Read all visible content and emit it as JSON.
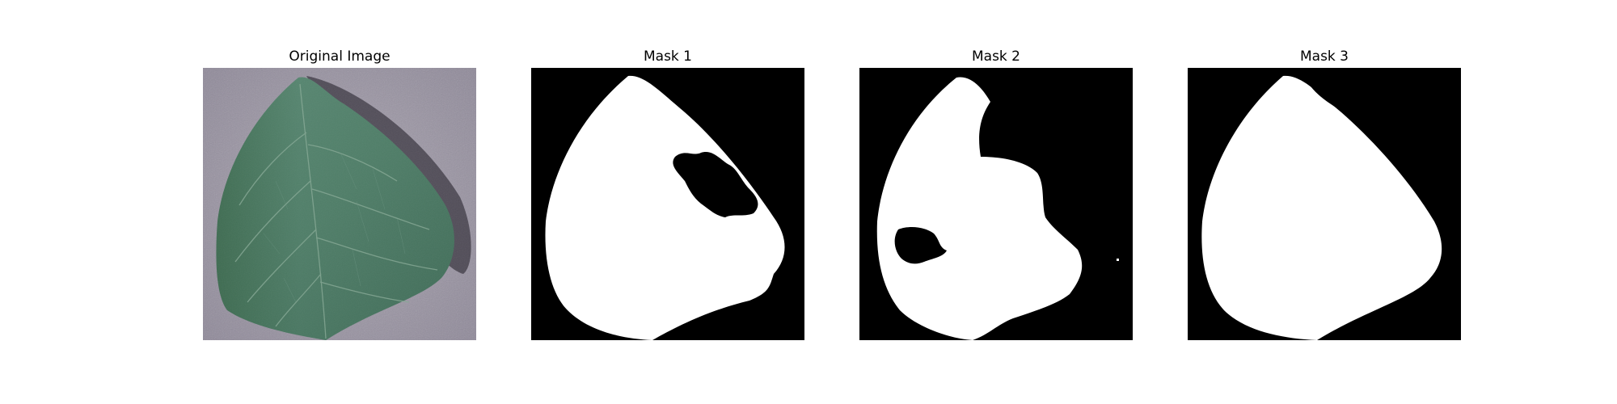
{
  "figure": {
    "panels": [
      {
        "title": "Original Image"
      },
      {
        "title": "Mask 1"
      },
      {
        "title": "Mask 2"
      },
      {
        "title": "Mask 3"
      }
    ]
  },
  "colors": {
    "background": "#ffffff",
    "mask_foreground": "#ffffff",
    "mask_background": "#000000",
    "leaf_green": "#4f7d67",
    "backdrop_gray": "#a09aa8"
  }
}
